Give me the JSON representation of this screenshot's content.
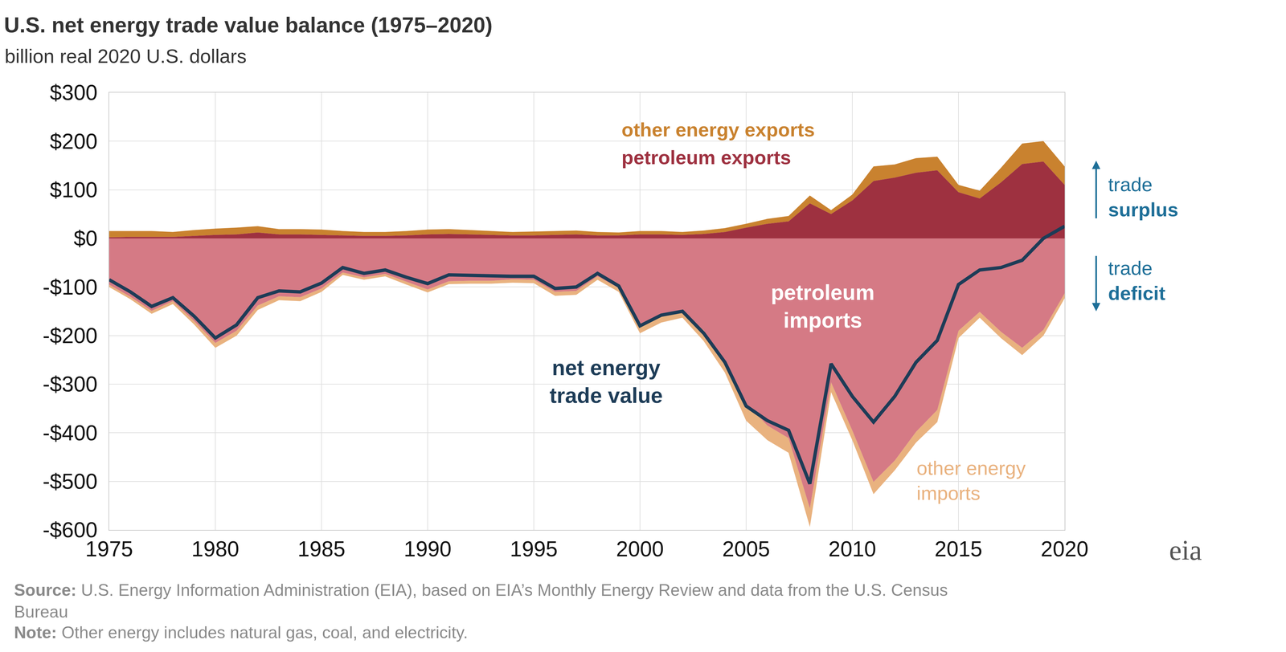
{
  "chart_data": {
    "type": "area",
    "title": "U.S. net energy trade value balance (1975–2020)",
    "subtitle": "billion real 2020 U.S. dollars",
    "x": [
      1975,
      1976,
      1977,
      1978,
      1979,
      1980,
      1981,
      1982,
      1983,
      1984,
      1985,
      1986,
      1987,
      1988,
      1989,
      1990,
      1991,
      1992,
      1993,
      1994,
      1995,
      1996,
      1997,
      1998,
      1999,
      2000,
      2001,
      2002,
      2003,
      2004,
      2005,
      2006,
      2007,
      2008,
      2009,
      2010,
      2011,
      2012,
      2013,
      2014,
      2015,
      2016,
      2017,
      2018,
      2019,
      2020
    ],
    "xlim": [
      1975,
      2020
    ],
    "xticks": [
      1975,
      1980,
      1985,
      1990,
      1995,
      2000,
      2005,
      2010,
      2015,
      2020
    ],
    "ylim": [
      -600,
      300
    ],
    "yticks": [
      {
        "value": -600,
        "label": "-$600"
      },
      {
        "value": -500,
        "label": "-$500"
      },
      {
        "value": -400,
        "label": "-$400"
      },
      {
        "value": -300,
        "label": "-$300"
      },
      {
        "value": -200,
        "label": "-$200"
      },
      {
        "value": -100,
        "label": "-$100"
      },
      {
        "value": 0,
        "label": "$0"
      },
      {
        "value": 100,
        "label": "$100"
      },
      {
        "value": 200,
        "label": "$200"
      },
      {
        "value": 300,
        "label": "$300"
      }
    ],
    "grid": true,
    "stacked": true,
    "series": [
      {
        "name": "petroleum exports",
        "type": "area",
        "color": "#9e3140",
        "values": [
          2,
          3,
          3,
          3,
          5,
          7,
          8,
          12,
          8,
          8,
          7,
          6,
          5,
          5,
          6,
          8,
          9,
          8,
          7,
          6,
          6,
          7,
          8,
          6,
          6,
          8,
          8,
          7,
          9,
          13,
          22,
          30,
          35,
          72,
          50,
          78,
          118,
          125,
          135,
          140,
          95,
          82,
          115,
          153,
          158,
          110
        ]
      },
      {
        "name": "other energy exports",
        "type": "area",
        "color": "#c9822f",
        "values": [
          13,
          12,
          12,
          10,
          12,
          13,
          14,
          13,
          11,
          11,
          11,
          9,
          8,
          8,
          9,
          10,
          10,
          9,
          8,
          7,
          8,
          8,
          8,
          7,
          6,
          7,
          7,
          6,
          7,
          8,
          8,
          10,
          11,
          16,
          8,
          12,
          30,
          27,
          30,
          28,
          15,
          16,
          30,
          42,
          42,
          38
        ]
      },
      {
        "name": "petroleum\nimports",
        "type": "area",
        "color": "#d57a85",
        "values": [
          -95,
          -120,
          -149,
          -129,
          -170,
          -215,
          -190,
          -138,
          -119,
          -121,
          -103,
          -70,
          -80,
          -73,
          -89,
          -105,
          -88,
          -87,
          -87,
          -84,
          -85,
          -110,
          -108,
          -78,
          -102,
          -180,
          -157,
          -150,
          -189,
          -252,
          -340,
          -385,
          -411,
          -555,
          -296,
          -395,
          -501,
          -457,
          -398,
          -353,
          -190,
          -151,
          -192,
          -225,
          -188,
          -113
        ]
      },
      {
        "name": "other energy\nimports",
        "type": "area",
        "color": "#e9b27f",
        "values": [
          -5,
          -5,
          -6,
          -6,
          -7,
          -10,
          -10,
          -9,
          -8,
          -8,
          -7,
          -5,
          -5,
          -5,
          -6,
          -6,
          -6,
          -6,
          -6,
          -7,
          -7,
          -8,
          -8,
          -7,
          -8,
          -15,
          -16,
          -13,
          -22,
          -24,
          -35,
          -30,
          -30,
          -38,
          -20,
          -20,
          -25,
          -20,
          -22,
          -25,
          -15,
          -12,
          -13,
          -15,
          -12,
          -10
        ]
      },
      {
        "name": "net energy\ntrade value",
        "type": "line",
        "color": "#1d3c57",
        "values": [
          -85,
          -110,
          -140,
          -122,
          -160,
          -205,
          -178,
          -122,
          -108,
          -110,
          -92,
          -60,
          -72,
          -65,
          -80,
          -93,
          -75,
          -76,
          -78,
          -78,
          -78,
          -103,
          -100,
          -72,
          -98,
          -180,
          -158,
          -150,
          -195,
          -255,
          -345,
          -375,
          -395,
          -505,
          -258,
          -325,
          -378,
          -325,
          -255,
          -210,
          -95,
          -65,
          -60,
          -45,
          0,
          25
        ]
      }
    ],
    "annotations": [
      {
        "text": "trade\nsurplus"
      },
      {
        "text": "trade\ndeficit"
      }
    ],
    "source": "Source: U.S. Energy Information Administration (EIA), based on EIA’s Monthly Energy Review and data from the U.S. Census\nBureau",
    "note": "Note: Other energy includes natural gas, coal, and electricity.",
    "logo": "eia"
  }
}
